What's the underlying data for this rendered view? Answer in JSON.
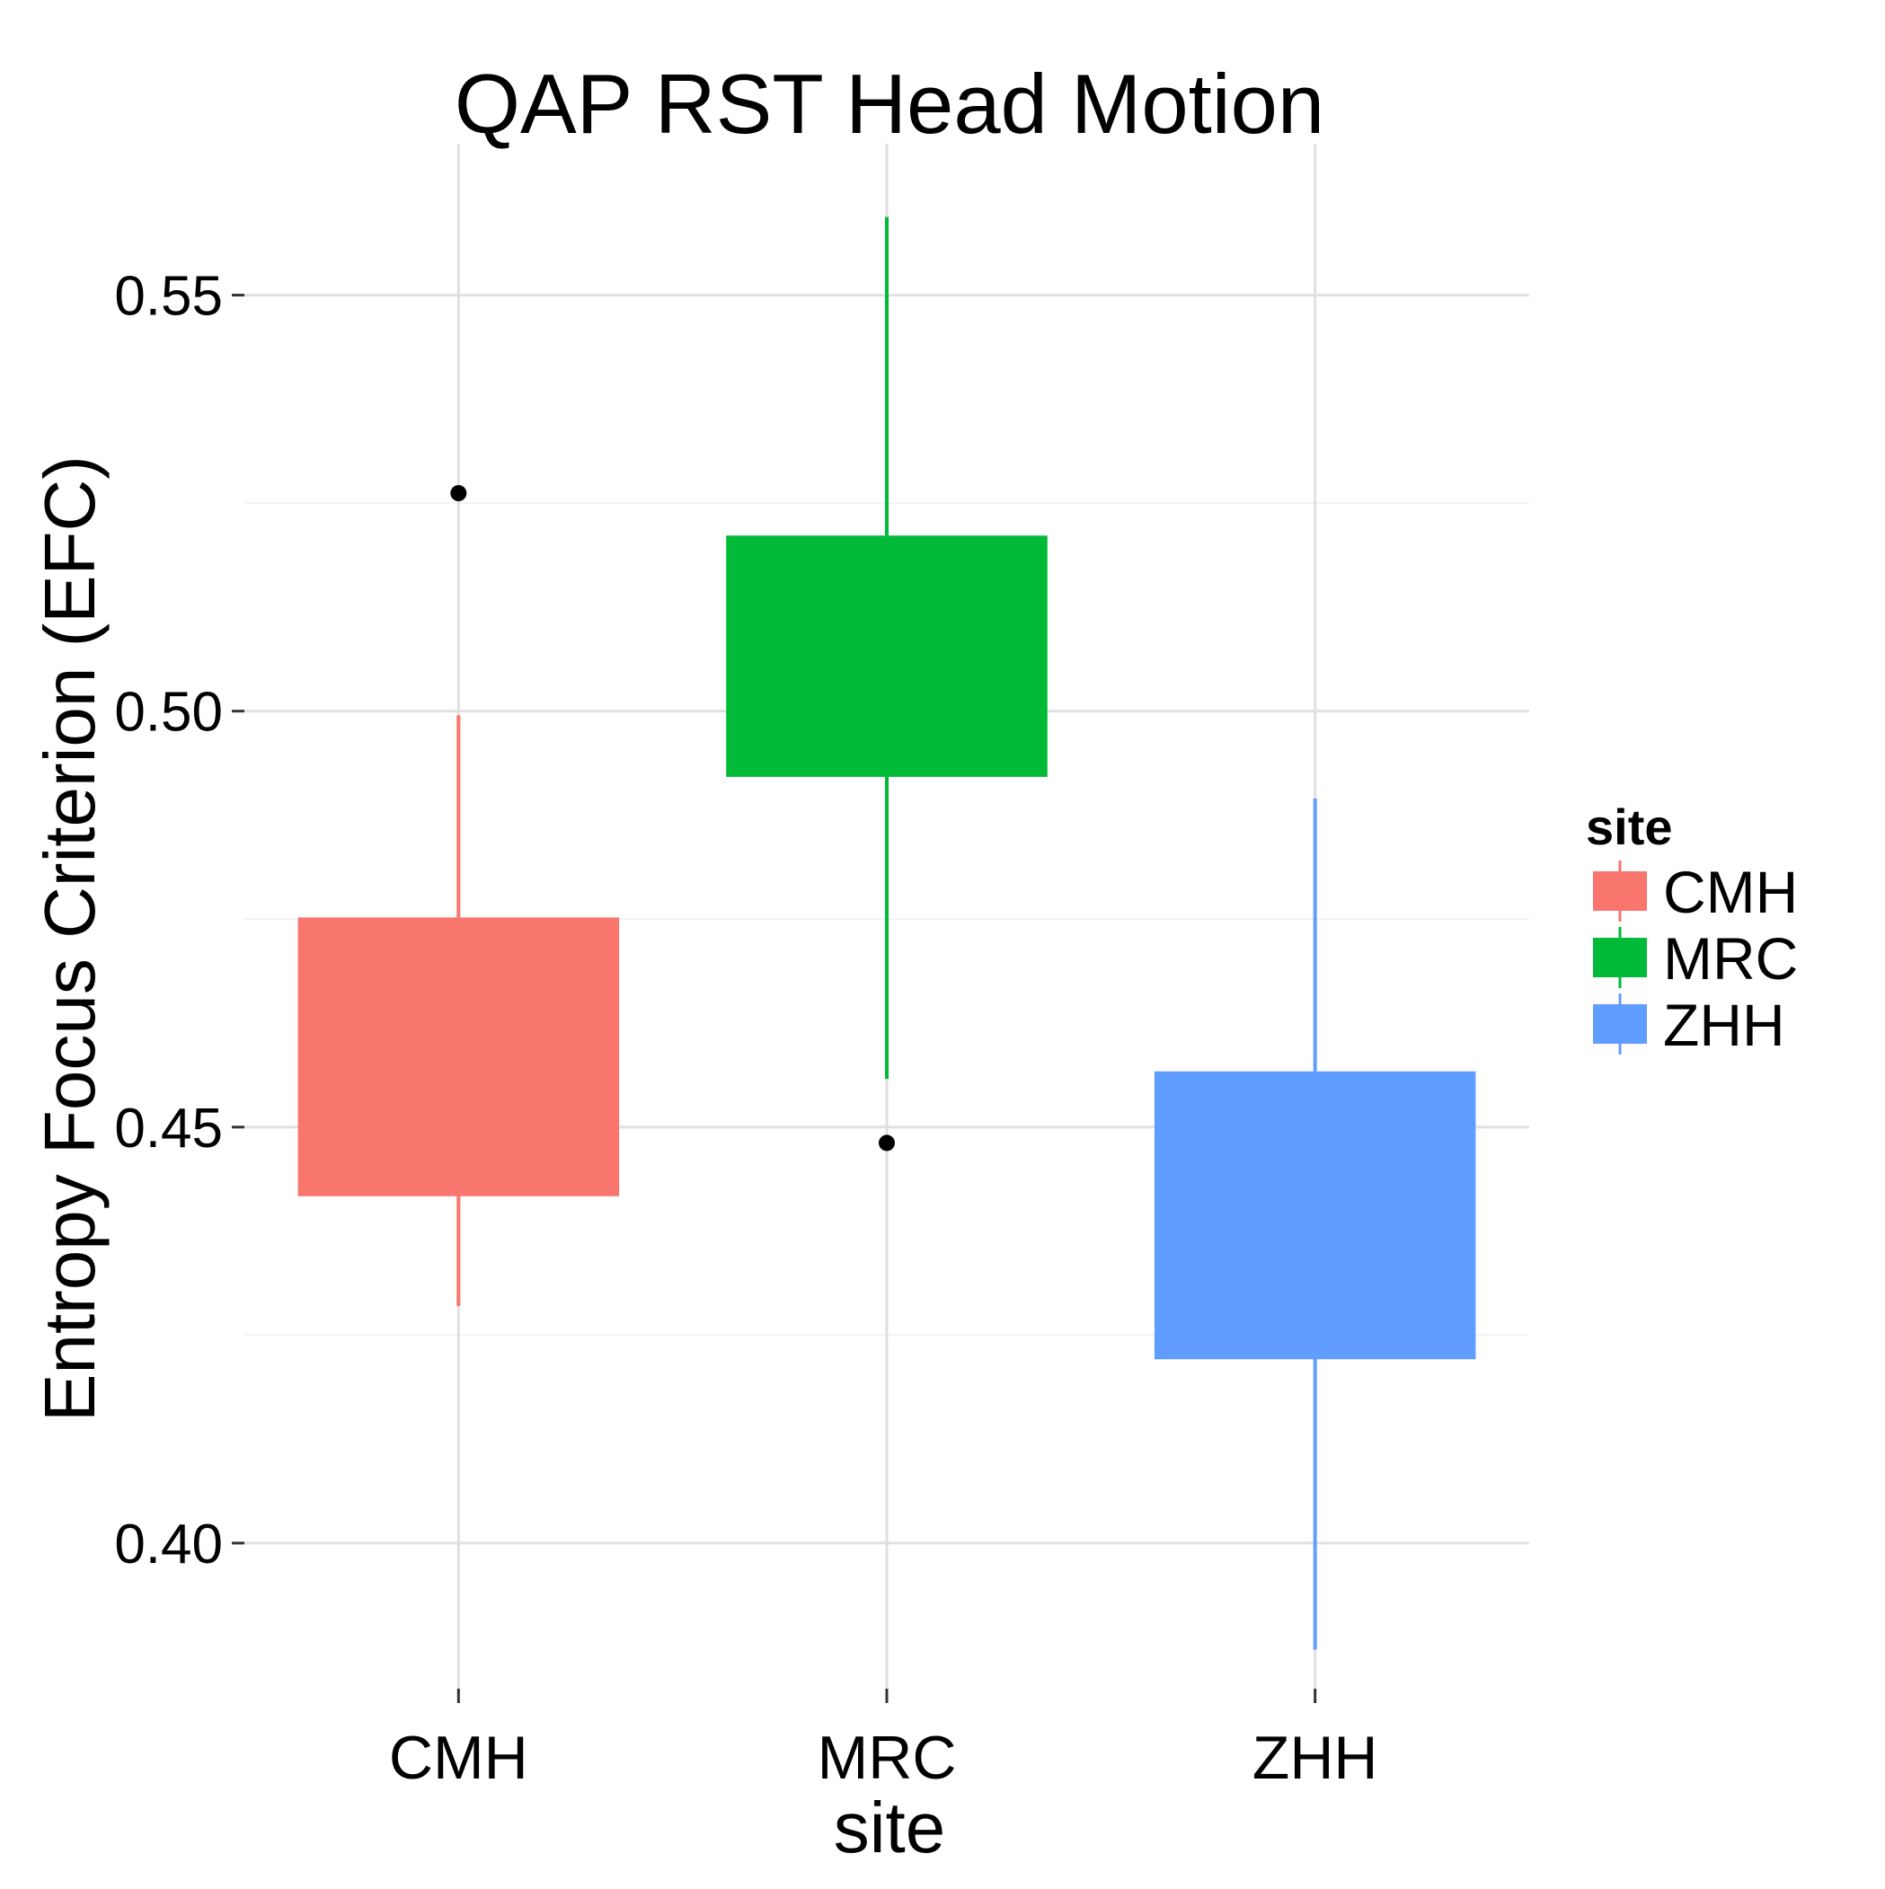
{
  "chart_data": {
    "type": "boxplot",
    "title": "QAP RST Head Motion",
    "xlabel": "site",
    "ylabel": "Entropy Focus Criterion (EFC)",
    "ylim": [
      0.3825,
      0.5682
    ],
    "yticks": [
      0.4,
      0.45,
      0.5,
      0.55
    ],
    "ytick_labels": [
      "0.40",
      "0.45",
      "0.50",
      "0.55"
    ],
    "minor_gridlines": [
      0.425,
      0.475,
      0.525
    ],
    "grid": true,
    "categories": [
      "CMH",
      "MRC",
      "ZHH"
    ],
    "series": [
      {
        "name": "CMH",
        "color": "#F8766D",
        "whisker_low": 0.4285,
        "q1": 0.4418,
        "median": 0.4418,
        "q3": 0.4752,
        "whisker_high": 0.4995,
        "outliers": [
          0.5262
        ]
      },
      {
        "name": "MRC",
        "color": "#00BA38",
        "whisker_low": 0.4558,
        "q1": 0.4922,
        "median": 0.4922,
        "q3": 0.5211,
        "whisker_high": 0.5594,
        "outliers": [
          0.4481
        ]
      },
      {
        "name": "ZHH",
        "color": "#619CFF",
        "whisker_low": 0.3872,
        "q1": 0.4222,
        "median": 0.4222,
        "q3": 0.4567,
        "whisker_high": 0.4895,
        "outliers": []
      }
    ],
    "legend": {
      "title": "site",
      "position": "right",
      "entries": [
        "CMH",
        "MRC",
        "ZHH"
      ]
    }
  }
}
